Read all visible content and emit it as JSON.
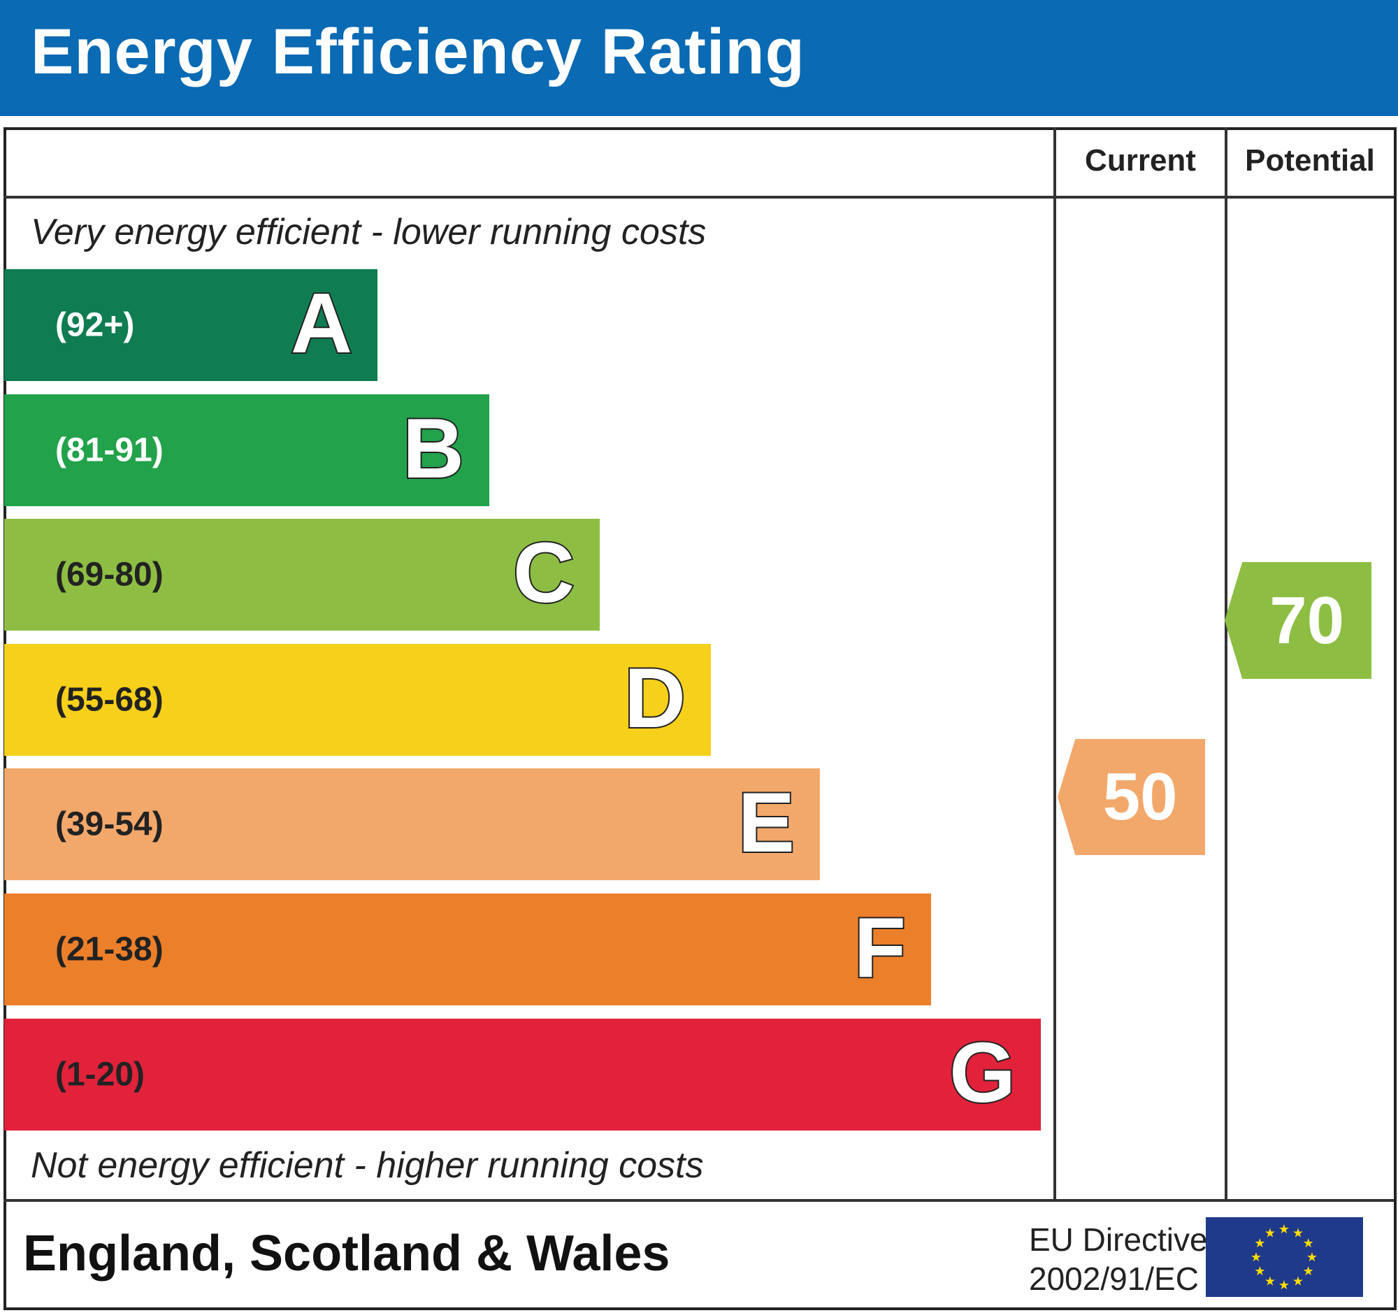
{
  "chart_data": {
    "type": "bar",
    "title": "Energy Efficiency Rating",
    "top_note": "Very energy efficient - lower running costs",
    "bottom_note": "Not energy efficient - higher running costs",
    "columns": [
      "Current",
      "Potential"
    ],
    "bands": [
      {
        "letter": "A",
        "range": "(92+)",
        "min": 92,
        "max": 100,
        "color": "#0f7d51",
        "range_color": "#ffffff"
      },
      {
        "letter": "B",
        "range": "(81-91)",
        "min": 81,
        "max": 91,
        "color": "#22a24b",
        "range_color": "#ffffff"
      },
      {
        "letter": "C",
        "range": "(69-80)",
        "min": 69,
        "max": 80,
        "color": "#8dbe43",
        "range_color": "#222222"
      },
      {
        "letter": "D",
        "range": "(55-68)",
        "min": 55,
        "max": 68,
        "color": "#f6d01a",
        "range_color": "#222222"
      },
      {
        "letter": "E",
        "range": "(39-54)",
        "min": 39,
        "max": 54,
        "color": "#f3a86b",
        "range_color": "#222222"
      },
      {
        "letter": "F",
        "range": "(21-38)",
        "min": 21,
        "max": 38,
        "color": "#ec7f2a",
        "range_color": "#222222"
      },
      {
        "letter": "G",
        "range": "(1-20)",
        "min": 1,
        "max": 20,
        "color": "#e2213b",
        "range_color": "#222222"
      }
    ],
    "current": {
      "value": "50",
      "band": "E",
      "color": "#f3a86b"
    },
    "potential": {
      "value": "70",
      "band": "C",
      "color": "#8dbe43"
    }
  },
  "footer": {
    "region": "England, Scotland & Wales",
    "directive_line1": "EU Directive",
    "directive_line2": "2002/91/EC",
    "flag": "eu-flag-icon"
  },
  "colors": {
    "header": "#0a6ab3",
    "flag": "#1f3a8a",
    "stars": "#ffdd00"
  }
}
